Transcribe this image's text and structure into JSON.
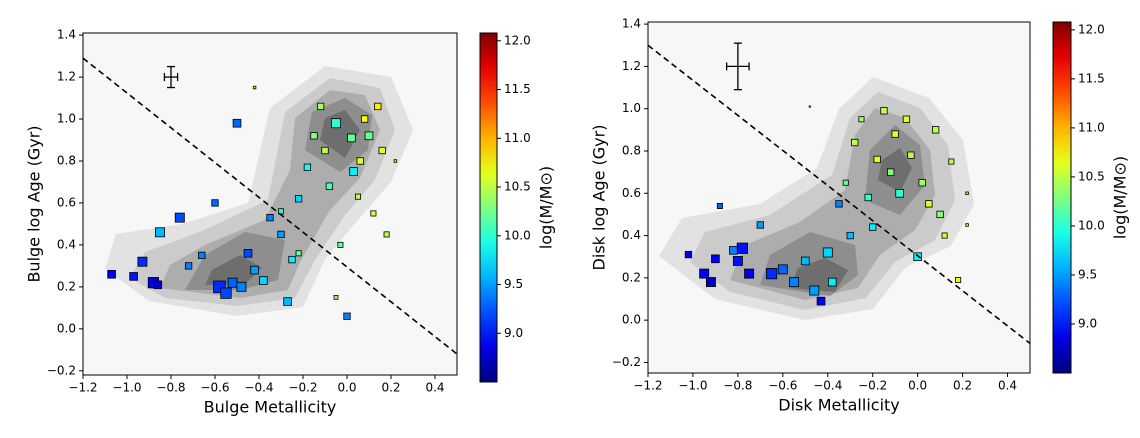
{
  "chart_data": [
    {
      "type": "scatter",
      "xlabel": "Bulge Metallicity",
      "ylabel": "Bulge log Age (Gyr)",
      "xlim": [
        -1.2,
        0.5
      ],
      "ylim": [
        -0.22,
        1.41
      ],
      "xticks": [
        {
          "value": -1.2,
          "label": "−1.2"
        },
        {
          "value": -1.0,
          "label": "−1.0"
        },
        {
          "value": -0.8,
          "label": "−0.8"
        },
        {
          "value": -0.6,
          "label": "−0.6"
        },
        {
          "value": -0.4,
          "label": "−0.4"
        },
        {
          "value": -0.2,
          "label": "−0.2"
        },
        {
          "value": 0,
          "label": "0.0"
        },
        0.2,
        0.4
      ],
      "yticks": [
        {
          "value": -0.2,
          "label": "−0.2"
        },
        {
          "value": 0,
          "label": "0.0"
        },
        0.2,
        0.4,
        0.6,
        0.8,
        {
          "value": 1,
          "label": "1.0"
        },
        1.2,
        1.4
      ],
      "x": [
        -1.07,
        -0.97,
        -0.93,
        -0.88,
        -0.86,
        -0.85,
        -0.76,
        -0.72,
        -0.66,
        -0.58,
        -0.55,
        -0.52,
        -0.5,
        -0.48,
        -0.45,
        -0.42,
        -0.38,
        -0.35,
        -0.3,
        -0.27,
        -0.25,
        -0.22,
        -0.18,
        -0.15,
        -0.12,
        -0.1,
        -0.08,
        -0.05,
        -0.03,
        0.0,
        0.02,
        0.05,
        0.06,
        0.08,
        0.1,
        0.12,
        0.14,
        0.16,
        0.18,
        0.22,
        -0.3,
        -0.6,
        -0.42,
        -0.05,
        -0.22,
        0.03
      ],
      "y": [
        0.26,
        0.25,
        0.32,
        0.22,
        0.21,
        0.46,
        0.53,
        0.3,
        0.35,
        0.2,
        0.17,
        0.22,
        0.98,
        0.2,
        0.36,
        0.28,
        0.23,
        0.53,
        0.45,
        0.13,
        0.33,
        0.62,
        0.77,
        0.92,
        1.06,
        0.85,
        0.68,
        0.98,
        0.4,
        0.06,
        0.91,
        0.63,
        0.8,
        1.0,
        0.92,
        0.55,
        1.06,
        0.85,
        0.45,
        0.8,
        0.56,
        0.6,
        1.15,
        0.15,
        0.36,
        0.75
      ],
      "c": [
        8.9,
        9.0,
        9.1,
        8.9,
        8.8,
        9.6,
        9.2,
        9.4,
        9.4,
        9.1,
        9.2,
        9.3,
        9.3,
        9.4,
        9.2,
        9.5,
        9.7,
        9.4,
        9.5,
        9.6,
        9.8,
        9.7,
        9.9,
        10.3,
        10.4,
        10.5,
        10.1,
        10.0,
        10.2,
        9.4,
        10.2,
        10.5,
        10.6,
        10.7,
        10.2,
        10.6,
        10.8,
        10.6,
        10.5,
        10.7,
        10.0,
        9.3,
        10.7,
        10.4,
        10.2,
        9.8
      ],
      "sizes": [
        6,
        6,
        7,
        8,
        6,
        7,
        7,
        5,
        5,
        9,
        8,
        7,
        6,
        7,
        6,
        6,
        6,
        5,
        5,
        6,
        5,
        5,
        5,
        5,
        5,
        5,
        5,
        7,
        4,
        5,
        6,
        4,
        5,
        5,
        6,
        4,
        5,
        5,
        4,
        2,
        4,
        5,
        2,
        3,
        4,
        6
      ],
      "reference_line": {
        "x": [
          -1.2,
          0.5
        ],
        "y": [
          1.29,
          -0.12
        ]
      },
      "error_bar": {
        "x": -0.8,
        "y": 1.2,
        "xerr": 0.03,
        "yerr": 0.05
      },
      "colorbar": {
        "label": "log(M/M⊙)",
        "cmap": "jet",
        "lim": [
          8.5,
          12.08
        ],
        "ticks": [
          {
            "value": 9,
            "label": "9.0"
          },
          9.5,
          {
            "value": 10,
            "label": "10.0"
          },
          10.5,
          {
            "value": 11,
            "label": "11.0"
          },
          11.5,
          {
            "value": 12,
            "label": "12.0"
          }
        ]
      }
    },
    {
      "type": "scatter",
      "xlabel": "Disk Metallicity",
      "ylabel": "Disk log Age (Gyr)",
      "xlim": [
        -1.2,
        0.5
      ],
      "ylim": [
        -0.25,
        1.41
      ],
      "xticks": [
        {
          "value": -1.2,
          "label": "−1.2"
        },
        {
          "value": -1.0,
          "label": "−1.0"
        },
        {
          "value": -0.8,
          "label": "−0.8"
        },
        {
          "value": -0.6,
          "label": "−0.6"
        },
        {
          "value": -0.4,
          "label": "−0.4"
        },
        {
          "value": -0.2,
          "label": "−0.2"
        },
        {
          "value": 0,
          "label": "0.0"
        },
        0.2,
        0.4
      ],
      "yticks": [
        {
          "value": -0.2,
          "label": "−0.2"
        },
        {
          "value": 0,
          "label": "0.0"
        },
        0.2,
        0.4,
        0.6,
        0.8,
        {
          "value": 1,
          "label": "1.0"
        },
        1.2,
        1.4
      ],
      "x": [
        -1.02,
        -0.95,
        -0.92,
        -0.9,
        -0.8,
        -0.78,
        -0.75,
        -0.7,
        -0.65,
        -0.6,
        -0.55,
        -0.5,
        -0.46,
        -0.43,
        -0.4,
        -0.38,
        -0.35,
        -0.32,
        -0.3,
        -0.28,
        -0.25,
        -0.22,
        -0.2,
        -0.18,
        -0.15,
        -0.12,
        -0.1,
        -0.08,
        -0.05,
        -0.03,
        0.0,
        0.02,
        0.05,
        0.08,
        0.1,
        0.12,
        0.15,
        0.18,
        0.22,
        0.22,
        -0.88,
        -0.48,
        -0.82
      ],
      "y": [
        0.31,
        0.22,
        0.18,
        0.29,
        0.28,
        0.34,
        0.22,
        0.45,
        0.22,
        0.24,
        0.18,
        0.28,
        0.14,
        0.09,
        0.32,
        0.18,
        0.55,
        0.65,
        0.4,
        0.84,
        0.95,
        0.58,
        0.44,
        0.76,
        0.99,
        0.7,
        0.88,
        0.6,
        0.95,
        0.78,
        0.3,
        0.65,
        0.55,
        0.9,
        0.5,
        0.4,
        0.75,
        0.19,
        0.6,
        0.45,
        0.54,
        1.01,
        0.33
      ],
      "c": [
        8.9,
        8.9,
        8.7,
        8.9,
        9.0,
        9.0,
        8.9,
        9.5,
        9.1,
        9.3,
        9.4,
        9.6,
        9.5,
        8.9,
        9.7,
        9.8,
        9.4,
        10.2,
        9.6,
        10.5,
        10.4,
        10.0,
        9.8,
        10.6,
        10.5,
        10.3,
        10.6,
        10.0,
        10.6,
        10.5,
        9.8,
        10.4,
        10.6,
        10.5,
        10.3,
        10.6,
        10.5,
        10.7,
        10.8,
        10.7,
        9.3,
        10.3,
        9.4
      ],
      "sizes": [
        5,
        7,
        7,
        6,
        7,
        8,
        7,
        5,
        8,
        7,
        7,
        6,
        7,
        6,
        7,
        6,
        5,
        4,
        5,
        5,
        4,
        5,
        5,
        5,
        5,
        5,
        5,
        6,
        5,
        5,
        6,
        5,
        5,
        5,
        5,
        4,
        4,
        4,
        2,
        2,
        4,
        1,
        6
      ],
      "reference_line": {
        "x": [
          -1.2,
          0.5
        ],
        "y": [
          1.3,
          -0.11
        ]
      },
      "error_bar": {
        "x": -0.8,
        "y": 1.2,
        "xerr": 0.05,
        "yerr": 0.11
      },
      "colorbar": {
        "label": "log(M/M⊙)",
        "cmap": "jet",
        "lim": [
          8.5,
          12.08
        ],
        "ticks": [
          {
            "value": 9,
            "label": "9.0"
          },
          9.5,
          {
            "value": 10,
            "label": "10.0"
          },
          10.5,
          {
            "value": 11,
            "label": "11.0"
          },
          11.5,
          {
            "value": 12,
            "label": "12.0"
          }
        ]
      }
    }
  ]
}
